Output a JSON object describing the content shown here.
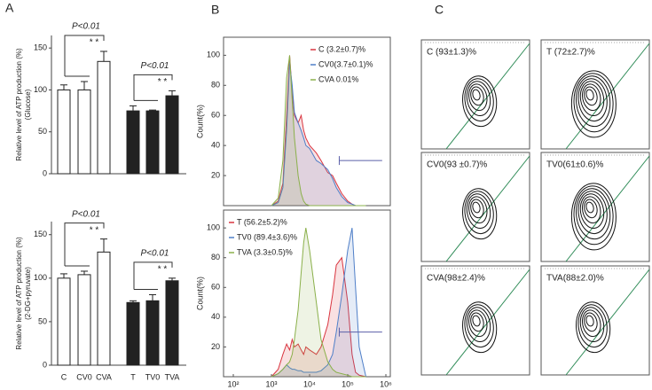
{
  "panel_labels": [
    "A",
    "B",
    "C"
  ],
  "chart_data": [
    {
      "type": "bar",
      "y_label": "Relative level of ATP production (%)",
      "y_label_2": "(Glucose)",
      "categories": [
        null,
        null,
        null,
        null,
        null,
        null
      ],
      "values": [
        100,
        100,
        134,
        75,
        75,
        93
      ],
      "errors": [
        6,
        10,
        12,
        6,
        1,
        6
      ],
      "colors": [
        "#ffffff",
        "#ffffff",
        "#ffffff",
        "#222222",
        "#222222",
        "#222222"
      ],
      "ylim": [
        0,
        165
      ],
      "yticks": [
        0,
        50,
        100,
        150
      ],
      "annotations": [
        "P<0.01",
        "* *",
        "P<0.01",
        "* *"
      ]
    },
    {
      "type": "bar",
      "y_label": "Relative level of ATP production (%)",
      "y_label_2": "(2-DG+pyruvate)",
      "categories": [
        "C",
        "CV0",
        "CVA",
        "T",
        "TV0",
        "TVA"
      ],
      "values": [
        100,
        104,
        130,
        72,
        74,
        97
      ],
      "errors": [
        5,
        4,
        15,
        2,
        7,
        3
      ],
      "colors": [
        "#ffffff",
        "#ffffff",
        "#ffffff",
        "#222222",
        "#222222",
        "#222222"
      ],
      "ylim": [
        0,
        165
      ],
      "yticks": [
        0,
        50,
        100,
        150
      ],
      "annotations": [
        "P<0.01",
        "* *",
        "P<0.01",
        "* *"
      ]
    },
    {
      "type": "histogram-line",
      "y_label": "Count(%)",
      "log_x": true,
      "legend": "upper right",
      "xlim": [
        100,
        1000000
      ],
      "x": [
        1000,
        1500,
        2000,
        2500,
        3000,
        3500,
        4000,
        5000,
        6000,
        7000,
        8000,
        10000,
        15000,
        20000,
        30000,
        40000,
        50000,
        70000,
        100000,
        130000,
        160000,
        200000,
        300000
      ],
      "ylim": [
        0,
        112
      ],
      "yticks": [
        20,
        40,
        60,
        80,
        100
      ],
      "series": [
        {
          "name": "C (3.2±0.7)%",
          "color": "#d9343f",
          "values": [
            0,
            3,
            15,
            60,
            100,
            75,
            60,
            55,
            60,
            50,
            45,
            40,
            35,
            30,
            22,
            20,
            15,
            8,
            3,
            1,
            0,
            0,
            0
          ]
        },
        {
          "name": "CV0(3.7±0.1)%",
          "color": "#4f7fc8",
          "values": [
            0,
            2,
            12,
            50,
            95,
            80,
            62,
            55,
            50,
            45,
            40,
            38,
            30,
            28,
            24,
            18,
            12,
            6,
            2,
            1,
            0,
            0,
            0
          ]
        },
        {
          "name": "CVA  0.01%",
          "color": "#8ab04a",
          "values": [
            0,
            5,
            30,
            85,
            100,
            70,
            45,
            20,
            8,
            3,
            1,
            0,
            0,
            0,
            0,
            0,
            0,
            0,
            0,
            0,
            0,
            0,
            0
          ]
        }
      ]
    },
    {
      "type": "histogram-line",
      "y_label": "Count(%)",
      "log_x": true,
      "legend": "upper left",
      "xlim": [
        100,
        1000000
      ],
      "xticks": [
        {
          "value": 100,
          "label": "10²"
        },
        {
          "value": 1000,
          "label": "10³"
        },
        {
          "value": 10000,
          "label": "10⁴"
        },
        {
          "value": 100000,
          "label": "10⁵"
        },
        {
          "value": 1000000,
          "label": "10⁶"
        }
      ],
      "x": [
        1000,
        1500,
        2000,
        2500,
        3000,
        3500,
        4000,
        5000,
        6000,
        7000,
        8000,
        10000,
        15000,
        20000,
        30000,
        40000,
        50000,
        70000,
        100000,
        130000,
        160000,
        200000,
        300000
      ],
      "ylim": [
        0,
        112
      ],
      "yticks": [
        20,
        40,
        60,
        80,
        100
      ],
      "series": [
        {
          "name": "T (56.2±5.2)%",
          "color": "#d9343f",
          "values": [
            0,
            5,
            15,
            22,
            18,
            25,
            20,
            22,
            18,
            15,
            20,
            18,
            15,
            20,
            35,
            55,
            75,
            80,
            50,
            15,
            3,
            1,
            0
          ]
        },
        {
          "name": "TV0 (89.4±3.6)%",
          "color": "#4f7fc8",
          "values": [
            0,
            2,
            5,
            8,
            6,
            5,
            5,
            4,
            4,
            3,
            3,
            3,
            3,
            4,
            8,
            15,
            30,
            55,
            85,
            100,
            60,
            20,
            0
          ]
        },
        {
          "name": "TVA (3.3±0.5)%",
          "color": "#8ab04a",
          "values": [
            0,
            2,
            5,
            8,
            10,
            15,
            25,
            45,
            70,
            90,
            100,
            85,
            50,
            25,
            10,
            5,
            3,
            2,
            1,
            0,
            0,
            0,
            0
          ]
        }
      ]
    }
  ],
  "contour_panels": {
    "labels": [
      "C (93±1.3)%",
      "T (72±2.7)%",
      "CV0(93 ±0.7)%",
      "TV0(61±0.6)%",
      "CVA(98±2.4)%",
      "TVA(88±2.0)%"
    ]
  }
}
